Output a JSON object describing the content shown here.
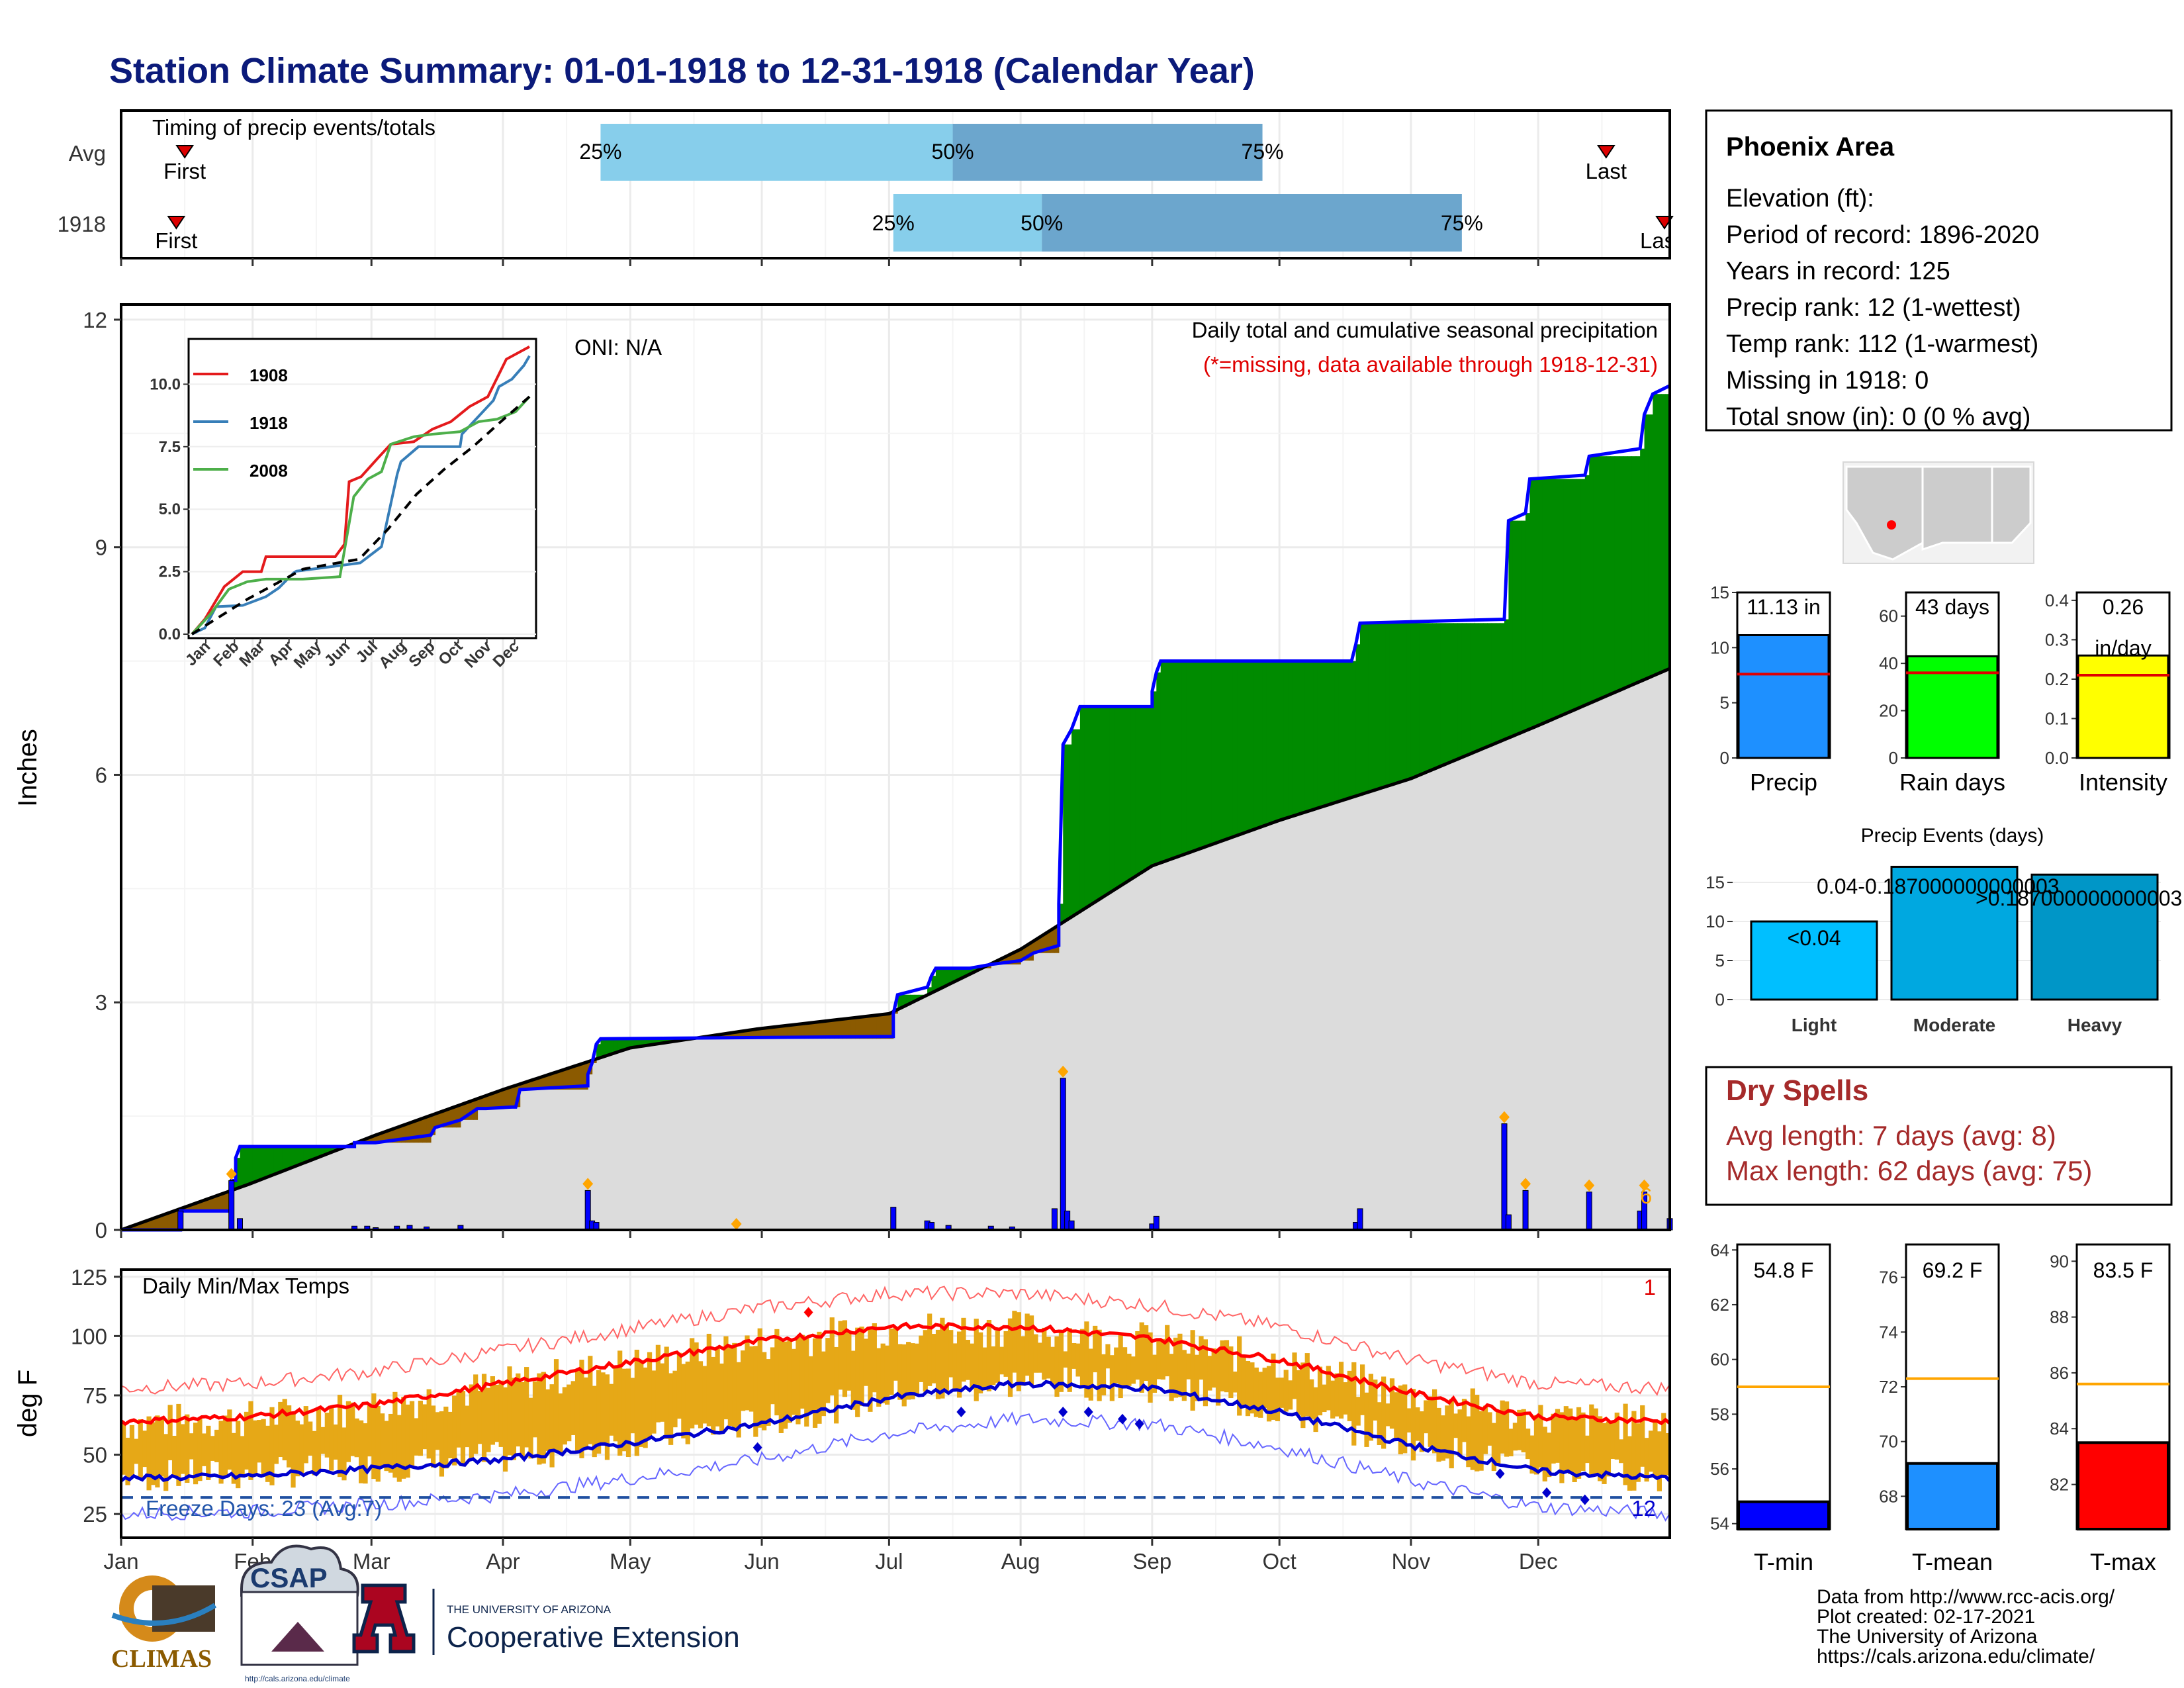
{
  "title": "Station Climate Summary: 01-01-1918 to 12-31-1918 (Calendar Year)",
  "colors": {
    "title": "#0b1a7a",
    "precip_bar": "#0000ff",
    "surplus": "#008b00",
    "deficit": "#8b5a00",
    "normal_area": "#dcdcdc",
    "bar_light": "#87ceeb",
    "bar_dark": "#6ca6cd",
    "tmax_line": "#ff0000",
    "tmin_line": "#0000cd",
    "temp_bars": "#e6a817",
    "dry_spells": "#a52a2a",
    "marker_orange": "#ffa500"
  },
  "timing": {
    "title": "Timing of precip events/totals",
    "rows": [
      {
        "label": "Avg",
        "first": "First",
        "last": "Last",
        "q25": "25%",
        "q50": "50%",
        "q75": "75%",
        "first_doy": 15,
        "last_doy": 350,
        "p25_doy": 113,
        "p50_doy": 196,
        "p75_doy": 269
      },
      {
        "label": "1918",
        "first": "First",
        "last": "Last",
        "q25": "25%",
        "q50": "50%",
        "q75": "75%",
        "first_doy": 13,
        "last_doy": 365,
        "p25_doy": 182,
        "p50_doy": 217,
        "p75_doy": 316
      }
    ]
  },
  "months": [
    "Jan",
    "Feb",
    "Mar",
    "Apr",
    "May",
    "Jun",
    "Jul",
    "Aug",
    "Sep",
    "Oct",
    "Nov",
    "Dec"
  ],
  "month_start_doy": [
    0,
    31,
    59,
    90,
    120,
    151,
    181,
    212,
    243,
    273,
    304,
    334
  ],
  "precip_panel": {
    "ylabel": "Inches",
    "yticks": [
      "0",
      "3",
      "6",
      "9",
      "12"
    ],
    "oni": "ONI: N/A",
    "caption1": "Daily total and cumulative seasonal precipitation",
    "caption2": "(*=missing, data available through 1918-12-31)",
    "count_label": "6"
  },
  "inset": {
    "yticks": [
      "0.0",
      "2.5",
      "5.0",
      "7.5",
      "10.0"
    ],
    "xticks": [
      "Jan",
      "Feb",
      "Mar",
      "Apr",
      "May",
      "Jun",
      "Jul",
      "Aug",
      "Sep",
      "Oct",
      "Nov",
      "Dec"
    ],
    "legend": [
      "1908",
      "1918",
      "2008"
    ],
    "colors": [
      "#e41a1c",
      "#377eb8",
      "#4daf4a"
    ]
  },
  "temp_panel": {
    "title": "Daily Min/Max Temps",
    "ylabel": "deg F",
    "yticks": [
      "25",
      "50",
      "75",
      "100",
      "125"
    ],
    "freeze": "Freeze Days: 23 (Avg:7)",
    "count_top": "1",
    "count_bottom": "12"
  },
  "station": {
    "name": "Phoenix Area",
    "lines": [
      "Elevation (ft):",
      "Period of record: 1896-2020",
      "Years in record: 125",
      "Precip rank: 12 (1-wettest)",
      "Temp rank: 112 (1-warmest)",
      "Missing in 1918: 0",
      "Total snow (in): 0 (0 % avg)"
    ]
  },
  "mini_bars": [
    {
      "label": "Precip",
      "value_label": "11.13 in",
      "value": 11.13,
      "avg": 7.6,
      "yticks": [
        "0",
        "5",
        "10",
        "15"
      ],
      "ymax": 15,
      "color": "#1e90ff"
    },
    {
      "label": "Rain days",
      "value_label": "43 days",
      "value": 43,
      "avg": 36,
      "yticks": [
        "0",
        "20",
        "40",
        "60"
      ],
      "ymax": 70,
      "color": "#00ff00"
    },
    {
      "label": "Intensity",
      "value_label": "0.26",
      "value_label2": "in/day",
      "value": 0.26,
      "avg": 0.21,
      "yticks": [
        "0.0",
        "0.1",
        "0.2",
        "0.3",
        "0.4"
      ],
      "ymax": 0.42,
      "color": "#ffff00"
    }
  ],
  "events": {
    "title": "Precip Events (days)",
    "yticks": [
      "0",
      "5",
      "10",
      "15"
    ],
    "bars": [
      {
        "label": "Light",
        "value": 10,
        "text": "<0.04"
      },
      {
        "label": "Moderate",
        "value": 17,
        "text": "0.04-0.187000000000003"
      },
      {
        "label": "Heavy",
        "value": 16,
        "text": ">0.187000000000003"
      }
    ]
  },
  "dry_spells": {
    "title": "Dry Spells",
    "line1": "Avg length: 7 days (avg: 8)",
    "line2": "Max length: 62 days (avg: 75)"
  },
  "temp_bars": [
    {
      "label": "T-min",
      "value_label": "54.8 F",
      "value": 54.8,
      "avg": 59.0,
      "ymin": 53.8,
      "ymax": 64.2,
      "yticks": [
        "54",
        "56",
        "58",
        "60",
        "62",
        "64"
      ],
      "color": "#0000ff"
    },
    {
      "label": "T-mean",
      "value_label": "69.2 F",
      "value": 69.2,
      "avg": 72.3,
      "ymin": 66.8,
      "ymax": 77.2,
      "yticks": [
        "68",
        "70",
        "72",
        "74",
        "76"
      ],
      "color": "#1e90ff"
    },
    {
      "label": "T-max",
      "value_label": "83.5 F",
      "value": 83.5,
      "avg": 85.6,
      "ymin": 80.4,
      "ymax": 90.6,
      "yticks": [
        "82",
        "84",
        "86",
        "88",
        "90"
      ],
      "color": "#ff0000"
    }
  ],
  "credits": [
    "Data from http://www.rcc-acis.org/",
    "Plot created: 02-17-2021",
    "The University of Arizona",
    "https://cals.arizona.edu/climate/"
  ],
  "logos": {
    "climas": "CLIMAS",
    "csap": "CSAP",
    "csap_url": "http://cals.arizona.edu/climate",
    "ua_small": "THE UNIVERSITY OF ARIZONA",
    "ua_big": "Cooperative Extension"
  },
  "chart_data": [
    {
      "type": "area",
      "title": "Daily total and cumulative seasonal precipitation",
      "ylabel": "Inches",
      "ylim": [
        0,
        12
      ],
      "x_unit": "day of year 1918",
      "cumulative_1918": [
        [
          0,
          0
        ],
        [
          14,
          0
        ],
        [
          14,
          0.25
        ],
        [
          26,
          0.25
        ],
        [
          26,
          0.65
        ],
        [
          27,
          0.65
        ],
        [
          27,
          0.95
        ],
        [
          28,
          1.1
        ],
        [
          55,
          1.1
        ],
        [
          55,
          1.15
        ],
        [
          60,
          1.15
        ],
        [
          73,
          1.25
        ],
        [
          74,
          1.35
        ],
        [
          80,
          1.45
        ],
        [
          84,
          1.6
        ],
        [
          86,
          1.6
        ],
        [
          92,
          1.62
        ],
        [
          93,
          1.62
        ],
        [
          94,
          1.85
        ],
        [
          110,
          1.9
        ],
        [
          110,
          2.05
        ],
        [
          111,
          2.2
        ],
        [
          112,
          2.45
        ],
        [
          113,
          2.52
        ],
        [
          182,
          2.55
        ],
        [
          182,
          2.85
        ],
        [
          183,
          3.1
        ],
        [
          190,
          3.2
        ],
        [
          191,
          3.35
        ],
        [
          192,
          3.45
        ],
        [
          200,
          3.45
        ],
        [
          205,
          3.5
        ],
        [
          212,
          3.55
        ],
        [
          215,
          3.65
        ],
        [
          221,
          3.75
        ],
        [
          221,
          4.3
        ],
        [
          222,
          6.4
        ],
        [
          224,
          6.6
        ],
        [
          226,
          6.9
        ],
        [
          243,
          6.9
        ],
        [
          243,
          7.1
        ],
        [
          244,
          7.35
        ],
        [
          245,
          7.5
        ],
        [
          290,
          7.5
        ],
        [
          291,
          7.72
        ],
        [
          292,
          8.0
        ],
        [
          326,
          8.05
        ],
        [
          327,
          9.35
        ],
        [
          331,
          9.45
        ],
        [
          332,
          9.9
        ],
        [
          345,
          9.95
        ],
        [
          346,
          10.2
        ],
        [
          358,
          10.3
        ],
        [
          359,
          10.75
        ],
        [
          361,
          11.02
        ],
        [
          365,
          11.13
        ]
      ],
      "normal_cumulative": [
        [
          0,
          0
        ],
        [
          30,
          0.6
        ],
        [
          60,
          1.25
        ],
        [
          90,
          1.85
        ],
        [
          120,
          2.4
        ],
        [
          150,
          2.65
        ],
        [
          181,
          2.85
        ],
        [
          212,
          3.7
        ],
        [
          243,
          4.8
        ],
        [
          273,
          5.4
        ],
        [
          304,
          5.95
        ],
        [
          334,
          6.65
        ],
        [
          365,
          7.4
        ]
      ],
      "daily_precip": [
        [
          14,
          0.25
        ],
        [
          26,
          0.65
        ],
        [
          28,
          0.15
        ],
        [
          55,
          0.05
        ],
        [
          58,
          0.05
        ],
        [
          60,
          0.03
        ],
        [
          65,
          0.05
        ],
        [
          68,
          0.06
        ],
        [
          72,
          0.04
        ],
        [
          80,
          0.06
        ],
        [
          110,
          0.52
        ],
        [
          111,
          0.12
        ],
        [
          112,
          0.1
        ],
        [
          182,
          0.3
        ],
        [
          190,
          0.12
        ],
        [
          191,
          0.1
        ],
        [
          195,
          0.06
        ],
        [
          205,
          0.05
        ],
        [
          210,
          0.04
        ],
        [
          220,
          0.28
        ],
        [
          222,
          2.0
        ],
        [
          223,
          0.25
        ],
        [
          224,
          0.12
        ],
        [
          243,
          0.08
        ],
        [
          244,
          0.18
        ],
        [
          291,
          0.1
        ],
        [
          292,
          0.28
        ],
        [
          326,
          1.4
        ],
        [
          327,
          0.2
        ],
        [
          331,
          0.52
        ],
        [
          346,
          0.5
        ],
        [
          358,
          0.25
        ],
        [
          359,
          0.5
        ],
        [
          365,
          0.15
        ]
      ]
    },
    {
      "type": "line",
      "title": "Daily Min/Max Temps",
      "ylabel": "deg F",
      "ylim": [
        15,
        128
      ],
      "tmax_normal": [
        [
          0,
          64
        ],
        [
          30,
          66
        ],
        [
          59,
          71
        ],
        [
          90,
          80
        ],
        [
          120,
          89
        ],
        [
          151,
          98
        ],
        [
          181,
          104
        ],
        [
          212,
          104
        ],
        [
          243,
          99
        ],
        [
          273,
          90
        ],
        [
          304,
          76
        ],
        [
          334,
          66
        ],
        [
          365,
          64
        ]
      ],
      "tmin_normal": [
        [
          0,
          40
        ],
        [
          30,
          41
        ],
        [
          59,
          44
        ],
        [
          90,
          48
        ],
        [
          120,
          55
        ],
        [
          151,
          63
        ],
        [
          181,
          74
        ],
        [
          212,
          80
        ],
        [
          243,
          78
        ],
        [
          273,
          68
        ],
        [
          304,
          54
        ],
        [
          334,
          43
        ],
        [
          365,
          40
        ]
      ],
      "freeze_line": 32
    },
    {
      "type": "line",
      "title": "cumulative precip comparison",
      "x": [
        "Jan",
        "Feb",
        "Mar",
        "Apr",
        "May",
        "Jun",
        "Jul",
        "Aug",
        "Sep",
        "Oct",
        "Nov",
        "Dec"
      ],
      "ylim": [
        0,
        11.5
      ],
      "series": [
        {
          "name": "1908",
          "points": [
            [
              0,
              0
            ],
            [
              14,
              0.6
            ],
            [
              35,
              1.9
            ],
            [
              55,
              2.5
            ],
            [
              75,
              2.5
            ],
            [
              80,
              3.1
            ],
            [
              120,
              3.1
            ],
            [
              155,
              3.1
            ],
            [
              165,
              3.6
            ],
            [
              170,
              6.1
            ],
            [
              183,
              6.3
            ],
            [
              200,
              7.0
            ],
            [
              215,
              7.6
            ],
            [
              240,
              7.7
            ],
            [
              260,
              8.2
            ],
            [
              280,
              8.5
            ],
            [
              300,
              9.1
            ],
            [
              320,
              9.5
            ],
            [
              340,
              11.0
            ],
            [
              365,
              11.5
            ]
          ]
        },
        {
          "name": "1918",
          "points": [
            [
              0,
              0
            ],
            [
              14,
              0.25
            ],
            [
              26,
              1.1
            ],
            [
              55,
              1.15
            ],
            [
              80,
              1.5
            ],
            [
              94,
              1.85
            ],
            [
              110,
              2.45
            ],
            [
              113,
              2.52
            ],
            [
              182,
              2.85
            ],
            [
              205,
              3.5
            ],
            [
              222,
              6.4
            ],
            [
              226,
              6.9
            ],
            [
              245,
              7.5
            ],
            [
              290,
              7.5
            ],
            [
              292,
              8.0
            ],
            [
              326,
              9.35
            ],
            [
              332,
              9.9
            ],
            [
              346,
              10.2
            ],
            [
              359,
              10.75
            ],
            [
              365,
              11.13
            ]
          ]
        },
        {
          "name": "2008",
          "points": [
            [
              0,
              0
            ],
            [
              20,
              0.8
            ],
            [
              40,
              1.8
            ],
            [
              60,
              2.1
            ],
            [
              80,
              2.2
            ],
            [
              120,
              2.2
            ],
            [
              160,
              2.3
            ],
            [
              175,
              5.5
            ],
            [
              190,
              6.2
            ],
            [
              205,
              6.5
            ],
            [
              215,
              7.6
            ],
            [
              240,
              7.9
            ],
            [
              260,
              8.0
            ],
            [
              290,
              8.1
            ],
            [
              310,
              8.5
            ],
            [
              330,
              8.6
            ],
            [
              350,
              8.9
            ],
            [
              365,
              9.5
            ]
          ]
        },
        {
          "name": "avg",
          "points": [
            [
              0,
              0
            ],
            [
              30,
              0.7
            ],
            [
              60,
              1.4
            ],
            [
              90,
              2.0
            ],
            [
              120,
              2.6
            ],
            [
              150,
              2.8
            ],
            [
              181,
              3.0
            ],
            [
              212,
              4.2
            ],
            [
              243,
              5.6
            ],
            [
              273,
              6.6
            ],
            [
              304,
              7.5
            ],
            [
              334,
              8.5
            ],
            [
              365,
              9.5
            ]
          ]
        }
      ]
    }
  ]
}
